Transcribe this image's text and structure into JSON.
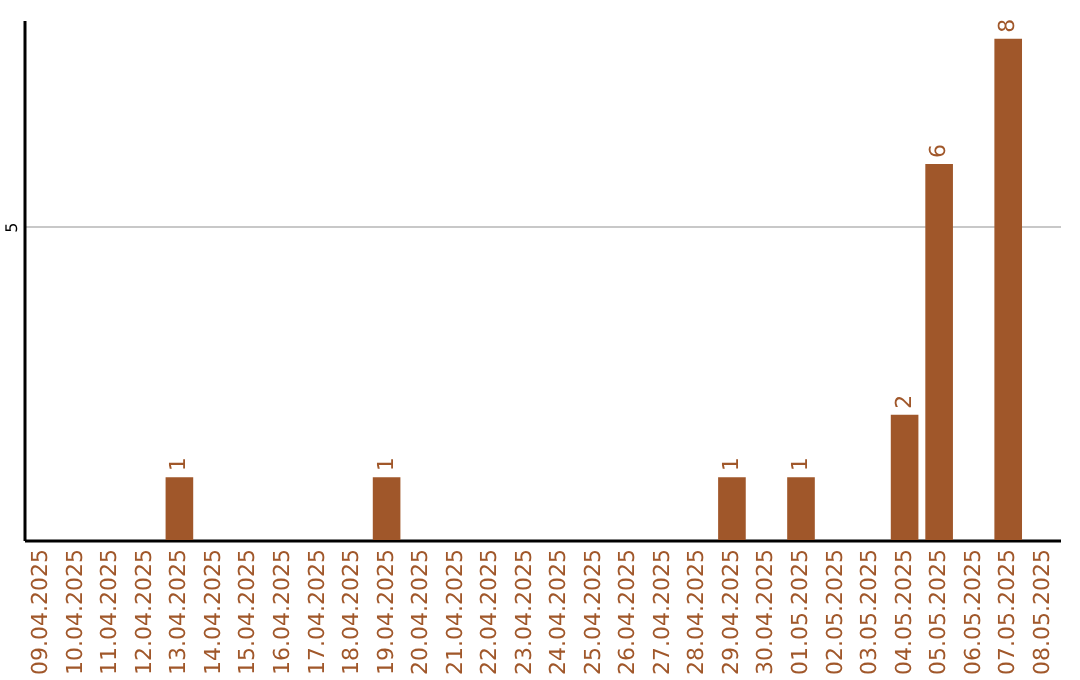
{
  "chart_data": {
    "type": "bar",
    "categories": [
      "09.04.2025",
      "10.04.2025",
      "11.04.2025",
      "12.04.2025",
      "13.04.2025",
      "14.04.2025",
      "15.04.2025",
      "16.04.2025",
      "17.04.2025",
      "18.04.2025",
      "19.04.2025",
      "20.04.2025",
      "21.04.2025",
      "22.04.2025",
      "23.04.2025",
      "24.04.2025",
      "25.04.2025",
      "26.04.2025",
      "27.04.2025",
      "28.04.2025",
      "29.04.2025",
      "30.04.2025",
      "01.05.2025",
      "02.05.2025",
      "03.05.2025",
      "04.05.2025",
      "05.05.2025",
      "06.05.2025",
      "07.05.2025",
      "08.05.2025"
    ],
    "values": [
      0,
      0,
      0,
      0,
      1,
      0,
      0,
      0,
      0,
      0,
      1,
      0,
      0,
      0,
      0,
      0,
      0,
      0,
      0,
      0,
      1,
      0,
      1,
      0,
      0,
      2,
      6,
      0,
      8,
      0
    ],
    "value_labels": [
      null,
      null,
      null,
      null,
      "1",
      null,
      null,
      null,
      null,
      null,
      "1",
      null,
      null,
      null,
      null,
      null,
      null,
      null,
      null,
      null,
      "1",
      null,
      "1",
      null,
      null,
      "2",
      "6",
      null,
      "8",
      null
    ],
    "color": "#a0572a",
    "ylim": [
      0,
      8.3
    ],
    "yticks": [
      5
    ],
    "grid": "y"
  }
}
